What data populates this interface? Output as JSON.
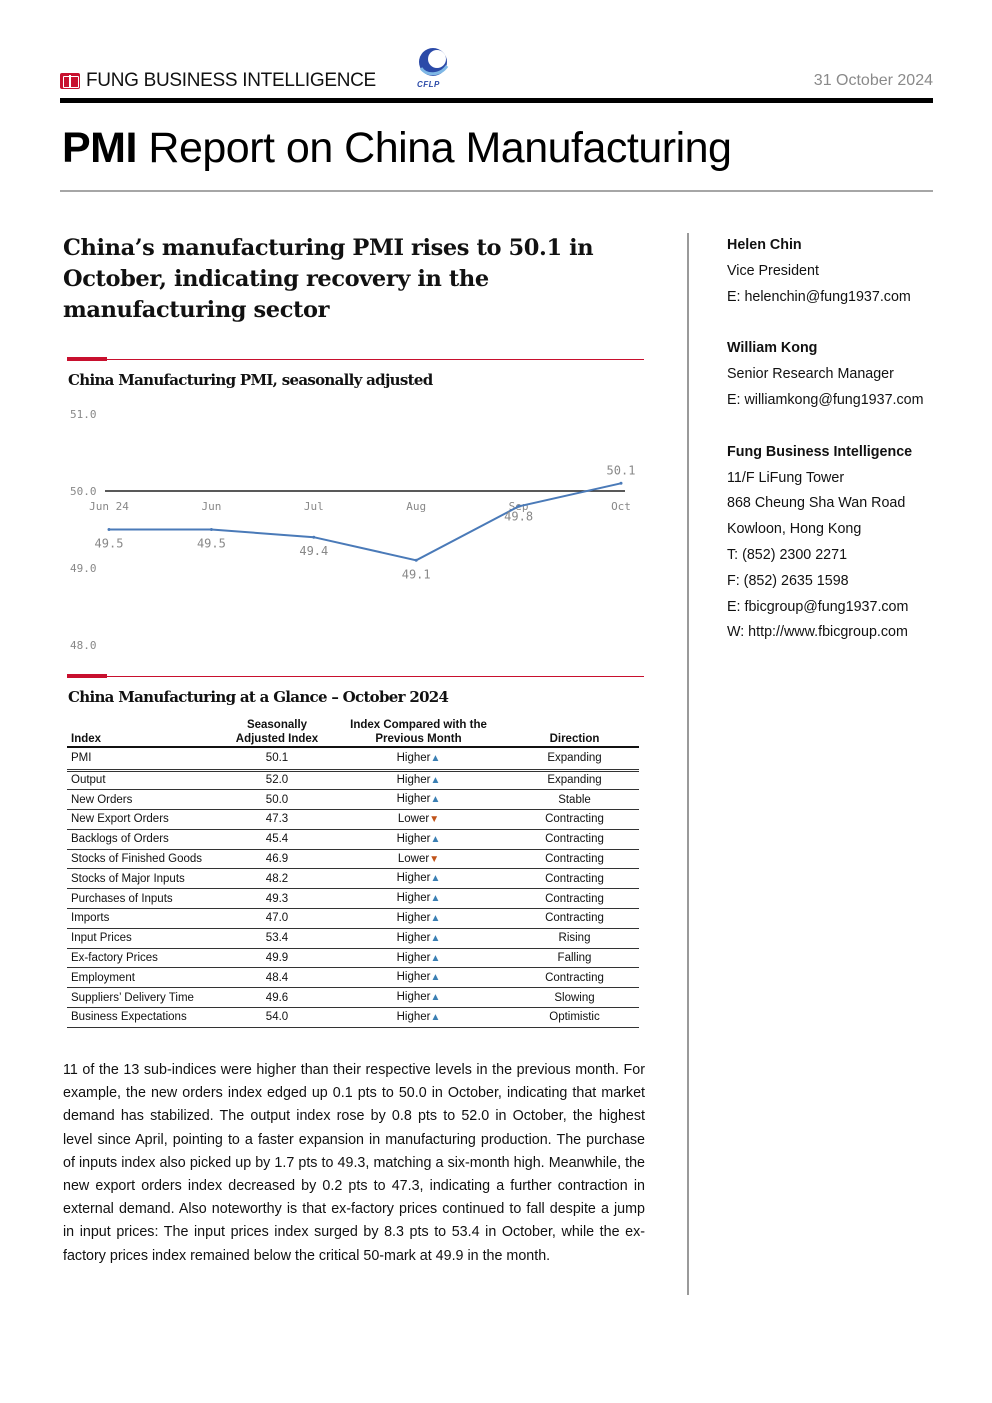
{
  "header": {
    "brand": "FUNG BUSINESS INTELLIGENCE",
    "partner_logo_text": "CFLP",
    "date": "31 October 2024",
    "title_bold": "PMI",
    "title_rest": " Report on China Manufacturing"
  },
  "headline": "China’s manufacturing PMI rises to 50.1 in October, indicating recovery in the manufacturing sector",
  "chart_section": {
    "title": "China Manufacturing PMI, seasonally adjusted"
  },
  "chart_data": {
    "type": "line",
    "title": "China Manufacturing PMI, seasonally adjusted",
    "categories": [
      "Jun 24",
      "Jun",
      "Jul",
      "Aug",
      "Sep",
      "Oct"
    ],
    "values": [
      49.5,
      49.5,
      49.4,
      49.1,
      49.8,
      50.1
    ],
    "data_labels": [
      "49.5",
      "49.5",
      "49.4",
      "49.1",
      "49.8",
      "50.1"
    ],
    "y_ticks": [
      "51.0",
      "50.0",
      "49.0",
      "48.0"
    ],
    "ylim": [
      48.0,
      51.0
    ],
    "baseline": 50.0,
    "line_color": "#4a7ab8",
    "grid": false
  },
  "table_section": {
    "title": "China Manufacturing at a Glance – October 2024",
    "headers": {
      "index": "Index",
      "sa_line1": "Seasonally",
      "sa_line2": "Adjusted Index",
      "cmp_line1": "Index Compared with the",
      "cmp_line2": "Previous Month",
      "direction": "Direction"
    },
    "rows": [
      {
        "index": "PMI",
        "value": "50.1",
        "compare": "Higher",
        "trend": "up",
        "direction": "Expanding"
      },
      {
        "index": "Output",
        "value": "52.0",
        "compare": "Higher",
        "trend": "up",
        "direction": "Expanding"
      },
      {
        "index": "New Orders",
        "value": "50.0",
        "compare": "Higher",
        "trend": "up",
        "direction": "Stable"
      },
      {
        "index": "New Export Orders",
        "value": "47.3",
        "compare": "Lower",
        "trend": "down",
        "direction": "Contracting"
      },
      {
        "index": "Backlogs of Orders",
        "value": "45.4",
        "compare": "Higher",
        "trend": "up",
        "direction": "Contracting"
      },
      {
        "index": "Stocks of Finished Goods",
        "value": "46.9",
        "compare": "Lower",
        "trend": "down",
        "direction": "Contracting"
      },
      {
        "index": "Stocks of Major Inputs",
        "value": "48.2",
        "compare": "Higher",
        "trend": "up",
        "direction": "Contracting"
      },
      {
        "index": "Purchases of Inputs",
        "value": "49.3",
        "compare": "Higher",
        "trend": "up",
        "direction": "Contracting"
      },
      {
        "index": "Imports",
        "value": "47.0",
        "compare": "Higher",
        "trend": "up",
        "direction": "Contracting"
      },
      {
        "index": "Input Prices",
        "value": "53.4",
        "compare": "Higher",
        "trend": "up",
        "direction": "Rising"
      },
      {
        "index": "Ex-factory Prices",
        "value": "49.9",
        "compare": "Higher",
        "trend": "up",
        "direction": "Falling"
      },
      {
        "index": "Employment",
        "value": "48.4",
        "compare": "Higher",
        "trend": "up",
        "direction": "Contracting"
      },
      {
        "index": "Suppliers’ Delivery Time",
        "value": "49.6",
        "compare": "Higher",
        "trend": "up",
        "direction": "Slowing"
      },
      {
        "index": "Business Expectations",
        "value": "54.0",
        "compare": "Higher",
        "trend": "up",
        "direction": "Optimistic"
      }
    ]
  },
  "body": "11 of the 13 sub-indices were higher than their respective levels in the previous month. For example, the new orders index edged up 0.1 pts to 50.0 in October, indicating that market demand has stabilized. The output index rose by 0.8 pts to 52.0 in October, the highest level since April, pointing to a faster expansion in manufacturing production. The purchase of inputs index also picked up by 1.7 pts to 49.3, matching a six-month high. Meanwhile, the new export orders index decreased by 0.2 pts to 47.3, indicating a further contraction in external demand. Also noteworthy is that ex-factory prices continued to fall despite a jump in input prices: The input prices index surged by 8.3 pts to 53.4 in October, while the ex-factory prices index remained below the critical 50-mark at 49.9 in the month.",
  "sidebar": {
    "contact1": {
      "name": "Helen Chin",
      "role": "Vice President",
      "email": "E: helenchin@fung1937.com"
    },
    "contact2": {
      "name": "William Kong",
      "role": "Senior Research Manager",
      "email": "E: williamkong@fung1937.com"
    },
    "company": {
      "name": "Fung Business Intelligence",
      "addr1": "11/F LiFung Tower",
      "addr2": "868 Cheung Sha Wan Road",
      "addr3": "Kowloon, Hong Kong",
      "tel": "T: (852) 2300 2271",
      "fax": "F: (852) 2635 1598",
      "email": "E: fbicgroup@fung1937.com",
      "web": "W: http://www.fbicgroup.com"
    }
  }
}
